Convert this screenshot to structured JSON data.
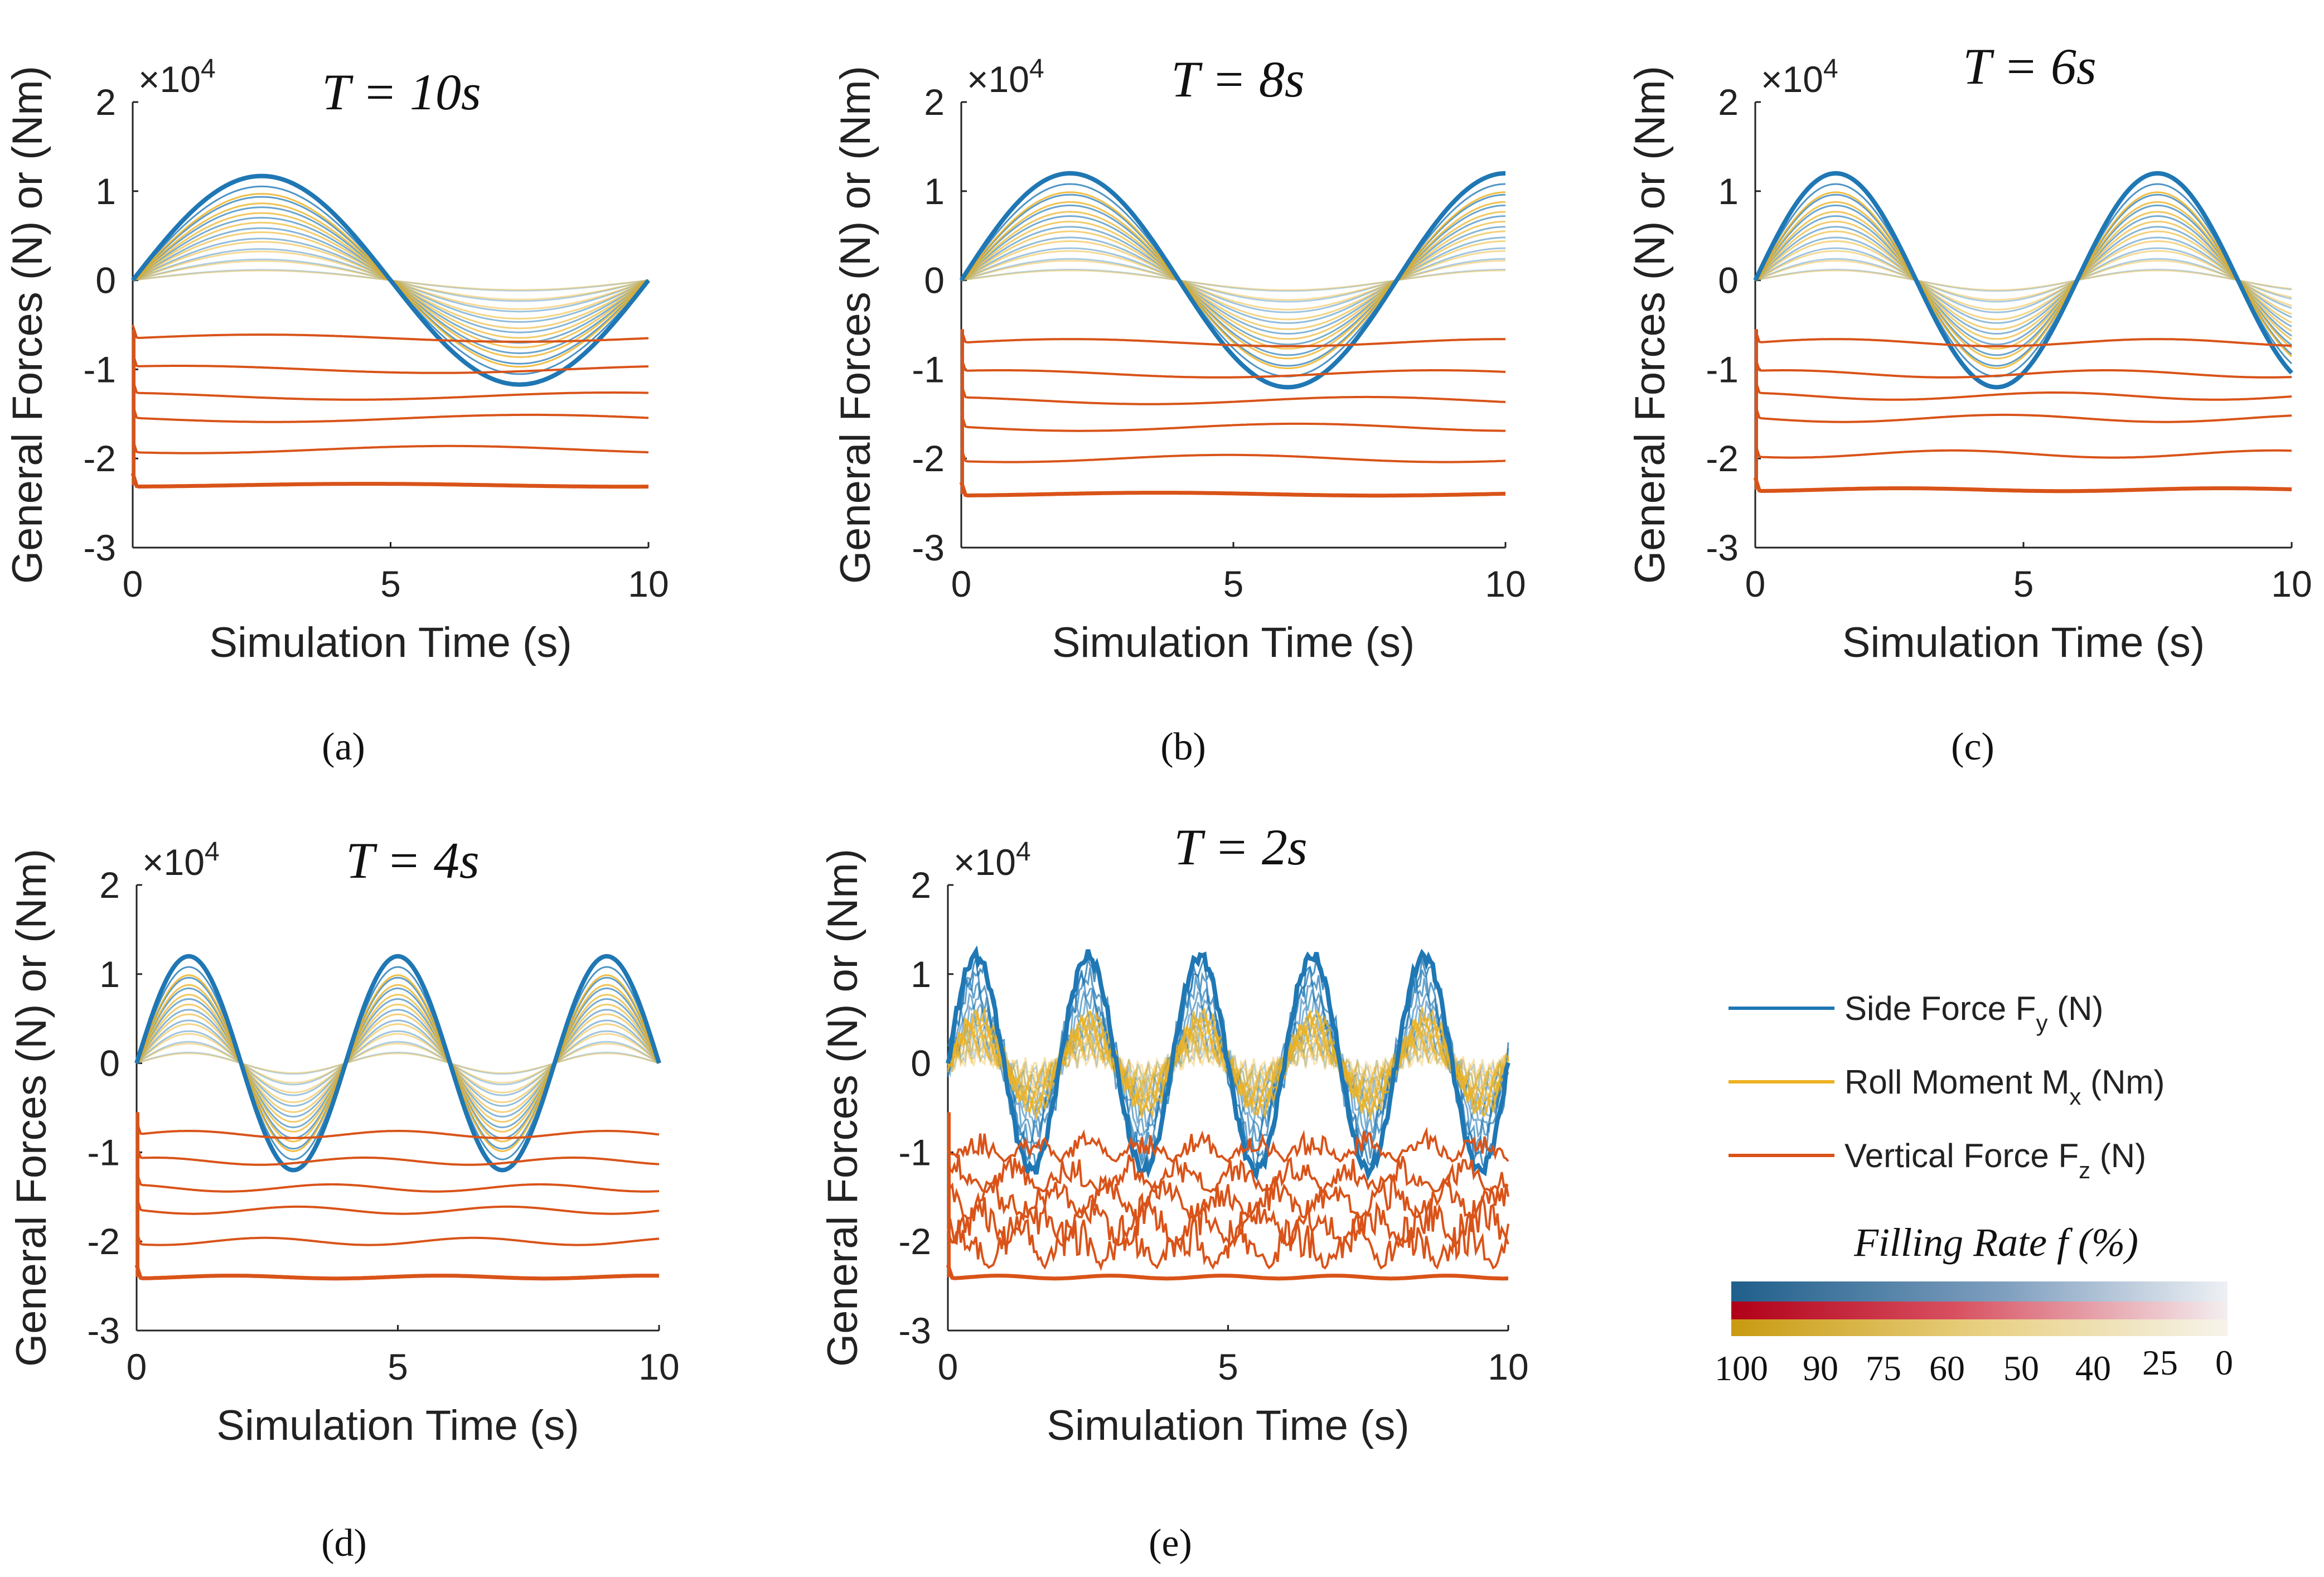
{
  "figure": {
    "legend": {
      "items": [
        {
          "label": "Side Force F",
          "sub": "y",
          "unit": " (N)",
          "color": "#1f77b4"
        },
        {
          "label": "Roll Moment M",
          "sub": "x",
          "unit": " (Nm)",
          "color": "#edb120"
        },
        {
          "label": "Vertical Force F",
          "sub": "z",
          "unit": " (N)",
          "color": "#d95319"
        }
      ],
      "colorbar_title": "Filling Rate f (%)",
      "colorbar_ticks": [
        "100",
        "90",
        "75",
        "60",
        "50",
        "40",
        "25",
        "0"
      ],
      "colorbar_colors": {
        "blue": "#1f5f8b",
        "red": "#c0001a",
        "yellow": "#d4a017",
        "fade": "#e6e9ee"
      }
    }
  },
  "chart_data": [
    {
      "panel_label": "(a)",
      "type": "line",
      "title": "T = 10s",
      "period_s": 10,
      "xlabel": "Simulation Time (s)",
      "ylabel": "General Forces (N) or (Nm)",
      "y_exponent": "×10^4",
      "xlim": [
        0,
        10
      ],
      "ylim": [
        -3,
        2
      ],
      "xticks": [
        0,
        5,
        10
      ],
      "yticks": [
        -3,
        -2,
        -1,
        0,
        1,
        2
      ],
      "series": [
        {
          "name": "Side Force Fy (N)",
          "peak_amplitude": 1.17
        },
        {
          "name": "Roll Moment Mx (Nm)",
          "peak_amplitude": 1.1
        },
        {
          "name": "Vertical Force Fz (N)",
          "levels": [
            -0.65,
            -1.0,
            -1.3,
            -1.55,
            -1.9,
            -2.3
          ]
        }
      ]
    },
    {
      "panel_label": "(b)",
      "type": "line",
      "title": "T = 8s",
      "period_s": 8,
      "xlabel": "Simulation Time (s)",
      "ylabel": "General Forces (N) or (Nm)",
      "y_exponent": "×10^4",
      "xlim": [
        0,
        10
      ],
      "ylim": [
        -3,
        2
      ],
      "xticks": [
        0,
        5,
        10
      ],
      "yticks": [
        -3,
        -2,
        -1,
        0,
        1,
        2
      ],
      "series": [
        {
          "name": "Side Force Fy (N)",
          "peak_amplitude": 1.2
        },
        {
          "name": "Roll Moment Mx (Nm)",
          "peak_amplitude": 1.12
        },
        {
          "name": "Vertical Force Fz (N)",
          "levels": [
            -0.7,
            -1.05,
            -1.35,
            -1.65,
            -2.0,
            -2.4
          ]
        }
      ]
    },
    {
      "panel_label": "(c)",
      "type": "line",
      "title": "T = 6s",
      "period_s": 6,
      "xlabel": "Simulation Time (s)",
      "ylabel": "General Forces (N) or (Nm)",
      "y_exponent": "×10^4",
      "xlim": [
        0,
        10
      ],
      "ylim": [
        -3,
        2
      ],
      "xticks": [
        0,
        5,
        10
      ],
      "yticks": [
        -3,
        -2,
        -1,
        0,
        1,
        2
      ],
      "series": [
        {
          "name": "Side Force Fy (N)",
          "peak_amplitude": 1.2
        },
        {
          "name": "Roll Moment Mx (Nm)",
          "peak_amplitude": 1.12
        },
        {
          "name": "Vertical Force Fz (N)",
          "levels": [
            -0.7,
            -1.05,
            -1.3,
            -1.55,
            -1.95,
            -2.35
          ]
        }
      ]
    },
    {
      "panel_label": "(d)",
      "type": "line",
      "title": "T = 4s",
      "period_s": 4,
      "xlabel": "Simulation Time (s)",
      "ylabel": "General Forces (N) or (Nm)",
      "y_exponent": "×10^4",
      "xlim": [
        0,
        10
      ],
      "ylim": [
        -3,
        2
      ],
      "xticks": [
        0,
        5,
        10
      ],
      "yticks": [
        -3,
        -2,
        -1,
        0,
        1,
        2
      ],
      "series": [
        {
          "name": "Side Force Fy (N)",
          "peak_amplitude": 1.2
        },
        {
          "name": "Roll Moment Mx (Nm)",
          "peak_amplitude": 1.12
        },
        {
          "name": "Vertical Force Fz (N)",
          "levels": [
            -0.8,
            -1.1,
            -1.4,
            -1.65,
            -2.0,
            -2.4
          ]
        }
      ]
    },
    {
      "panel_label": "(e)",
      "type": "line",
      "title": "T = 2s",
      "period_s": 2,
      "xlabel": "Simulation Time (s)",
      "ylabel": "General Forces (N) or (Nm)",
      "y_exponent": "×10^4",
      "xlim": [
        0,
        10
      ],
      "ylim": [
        -3,
        2
      ],
      "xticks": [
        0,
        5,
        10
      ],
      "yticks": [
        -3,
        -2,
        -1,
        0,
        1,
        2
      ],
      "series": [
        {
          "name": "Side Force Fy (N)",
          "peak_amplitude": 1.2
        },
        {
          "name": "Roll Moment Mx (Nm)",
          "peak_amplitude": 0.6
        },
        {
          "name": "Vertical Force Fz (N)",
          "levels": [
            -0.9,
            -1.25,
            -1.55,
            -1.85,
            -2.1,
            -2.4
          ]
        }
      ]
    }
  ]
}
